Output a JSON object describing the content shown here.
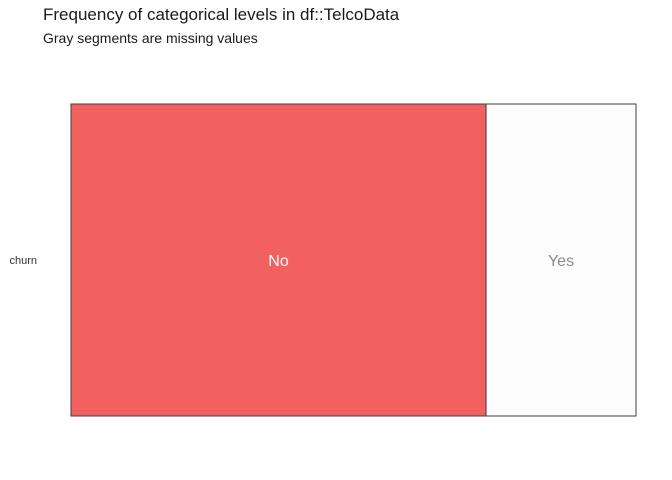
{
  "chart_data": {
    "type": "bar",
    "orientation": "horizontal",
    "stacked": "proportional",
    "title": "Frequency of categorical levels in df::TelcoData",
    "subtitle": "Gray segments are missing values",
    "categories": [
      "churn"
    ],
    "series": [
      {
        "name": "No",
        "values": [
          0.7346
        ],
        "color": "#F26160",
        "label_color": "#ffffff"
      },
      {
        "name": "Yes",
        "values": [
          0.2654
        ],
        "color": "#FDFDFD",
        "label_color": "#8a8a8a"
      }
    ],
    "xlim": [
      0,
      1
    ],
    "grid": false,
    "legend": "none"
  },
  "colors": {
    "segment_border": "#3f3f3f",
    "axis_text": "#333333"
  }
}
